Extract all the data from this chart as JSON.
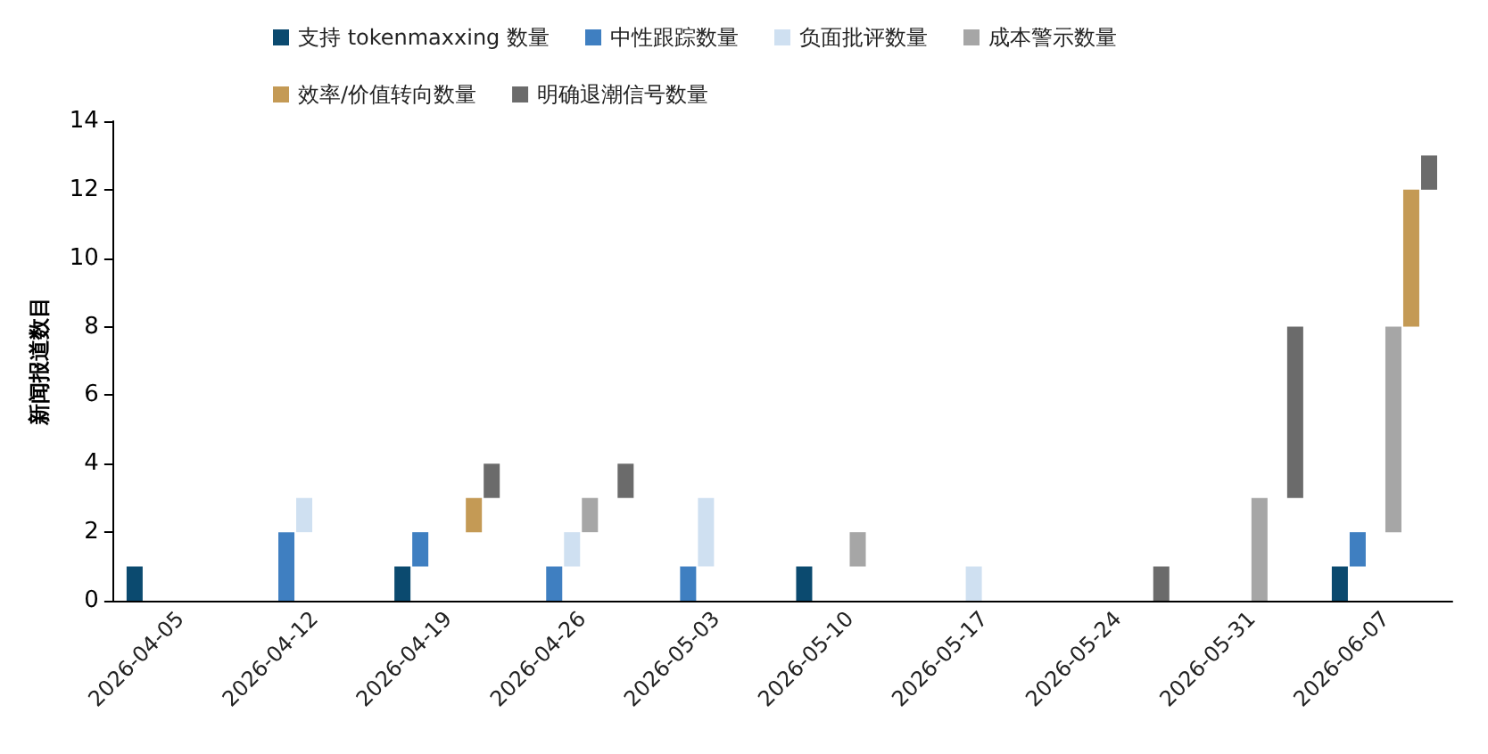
{
  "chart_data": {
    "type": "bar",
    "stacked": true,
    "ylabel": "新闻报道数目",
    "categories": [
      "2026-04-05",
      "2026-04-12",
      "2026-04-19",
      "2026-04-26",
      "2026-05-03",
      "2026-05-10",
      "2026-05-17",
      "2026-05-24",
      "2026-05-31",
      "2026-06-07"
    ],
    "series": [
      {
        "name": "支持 tokenmaxxing 数量",
        "color": "#0b4a6f",
        "values": [
          1,
          0,
          1,
          0,
          0,
          1,
          0,
          0,
          0,
          1
        ]
      },
      {
        "name": "中性跟踪数量",
        "color": "#3f7fc1",
        "values": [
          0,
          2,
          1,
          1,
          1,
          0,
          0,
          0,
          0,
          1
        ]
      },
      {
        "name": "负面批评数量",
        "color": "#cfe0f1",
        "values": [
          0,
          1,
          0,
          1,
          2,
          0,
          1,
          0,
          0,
          0
        ]
      },
      {
        "name": "成本警示数量",
        "color": "#a6a6a6",
        "values": [
          0,
          0,
          0,
          1,
          0,
          1,
          0,
          0,
          3,
          6
        ]
      },
      {
        "name": "效率/价值转向数量",
        "color": "#c49a55",
        "values": [
          0,
          0,
          1,
          0,
          0,
          0,
          0,
          0,
          0,
          4
        ]
      },
      {
        "name": "明确退潮信号数量",
        "color": "#6b6b6b",
        "values": [
          0,
          0,
          1,
          1,
          0,
          0,
          0,
          1,
          5,
          1
        ]
      }
    ],
    "ylim": [
      0,
      14
    ],
    "yticks": [
      0,
      2,
      4,
      6,
      8,
      10,
      12,
      14
    ],
    "grid": false,
    "legend": "top"
  }
}
